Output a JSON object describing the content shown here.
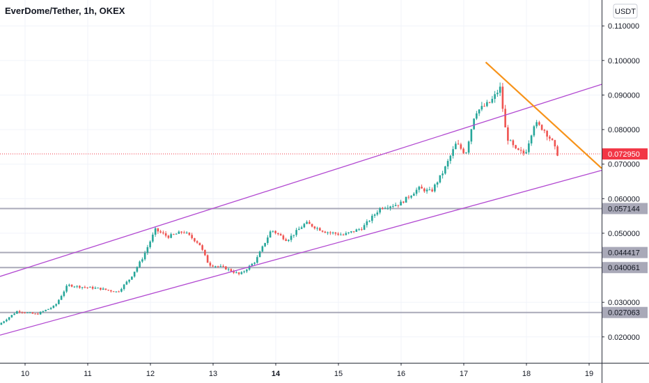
{
  "chart_data": {
    "type": "candlestick",
    "title": "EverDome/Tether, 1h, OKEX",
    "currency_button": "USDT",
    "colors": {
      "up": "#26a69a",
      "down": "#ef5350",
      "channel": "#b249d1",
      "trendline": "#f7931a",
      "horizontal_level": "#a9a9b8",
      "last_price": "#f23645",
      "grid": "#f0f3fa"
    },
    "x_axis": {
      "labels": [
        {
          "text": "10",
          "day": 10,
          "bold": false
        },
        {
          "text": "11",
          "day": 11,
          "bold": false
        },
        {
          "text": "12",
          "day": 12,
          "bold": false
        },
        {
          "text": "13",
          "day": 13,
          "bold": false
        },
        {
          "text": "14",
          "day": 14,
          "bold": true
        },
        {
          "text": "15",
          "day": 15,
          "bold": false
        },
        {
          "text": "16",
          "day": 16,
          "bold": false
        },
        {
          "text": "17",
          "day": 17,
          "bold": false
        },
        {
          "text": "18",
          "day": 18,
          "bold": false
        },
        {
          "text": "19",
          "day": 19,
          "bold": false
        }
      ],
      "range": [
        9.6,
        19.2
      ]
    },
    "y_axis": {
      "ticks": [
        "0.020000",
        "0.030000",
        "0.040000",
        "0.050000",
        "0.060000",
        "0.070000",
        "0.080000",
        "0.090000",
        "0.100000",
        "0.110000"
      ],
      "range": [
        0.0125,
        0.1175
      ]
    },
    "last_price": {
      "value": 0.07295,
      "label": "0.072950"
    },
    "levels": [
      {
        "value": 0.057144,
        "label": "0.057144"
      },
      {
        "value": 0.044417,
        "label": "0.044417"
      },
      {
        "value": 0.040061,
        "label": "0.040061"
      },
      {
        "value": 0.027063,
        "label": "0.027063"
      }
    ],
    "channel": {
      "upper": [
        [
          9.6,
          0.0375
        ],
        [
          19.2,
          0.0931
        ]
      ],
      "lower": [
        [
          9.6,
          0.0205
        ],
        [
          19.2,
          0.0682
        ]
      ]
    },
    "trendline": [
      [
        17.35,
        0.0995
      ],
      [
        19.2,
        0.0688
      ]
    ],
    "price_path": [
      [
        9.6,
        0.0235
      ],
      [
        9.9,
        0.0275
      ],
      [
        10.2,
        0.0265
      ],
      [
        10.5,
        0.029
      ],
      [
        10.7,
        0.035
      ],
      [
        10.9,
        0.0345
      ],
      [
        11.2,
        0.034
      ],
      [
        11.5,
        0.033
      ],
      [
        11.7,
        0.037
      ],
      [
        11.9,
        0.043
      ],
      [
        12.1,
        0.051
      ],
      [
        12.3,
        0.049
      ],
      [
        12.55,
        0.0505
      ],
      [
        12.8,
        0.047
      ],
      [
        12.95,
        0.041
      ],
      [
        13.2,
        0.04
      ],
      [
        13.45,
        0.038
      ],
      [
        13.7,
        0.042
      ],
      [
        13.95,
        0.051
      ],
      [
        14.2,
        0.048
      ],
      [
        14.5,
        0.053
      ],
      [
        14.8,
        0.0505
      ],
      [
        15.1,
        0.0495
      ],
      [
        15.4,
        0.0515
      ],
      [
        15.7,
        0.0575
      ],
      [
        16.0,
        0.0585
      ],
      [
        16.3,
        0.063
      ],
      [
        16.5,
        0.062
      ],
      [
        16.7,
        0.068
      ],
      [
        16.9,
        0.076
      ],
      [
        17.05,
        0.073
      ],
      [
        17.2,
        0.085
      ],
      [
        17.45,
        0.088
      ],
      [
        17.6,
        0.092
      ],
      [
        17.7,
        0.078
      ],
      [
        17.85,
        0.074
      ],
      [
        18.0,
        0.073
      ],
      [
        18.15,
        0.082
      ],
      [
        18.3,
        0.08
      ],
      [
        18.45,
        0.076
      ],
      [
        18.5,
        0.073
      ]
    ]
  }
}
